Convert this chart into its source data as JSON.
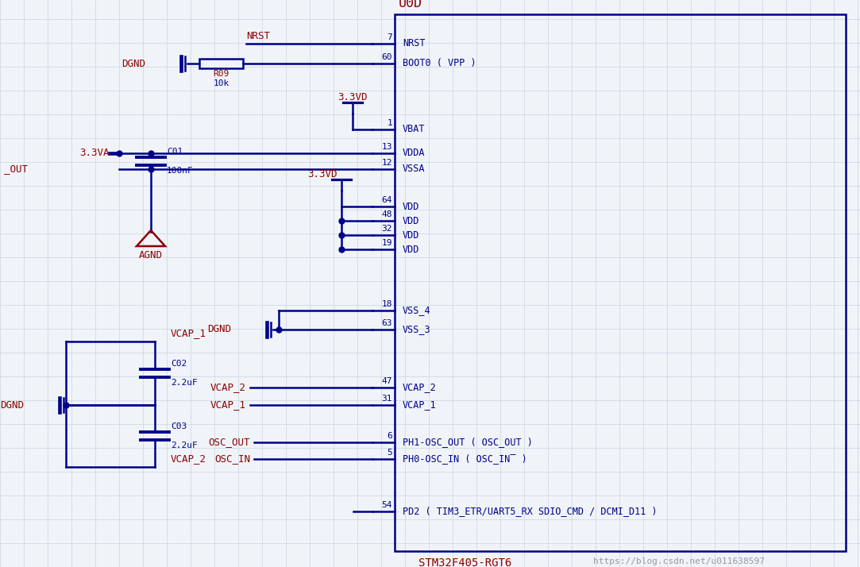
{
  "bg_color": "#f0f4f8",
  "grid_color": "#c8d4e0",
  "line_color": "#00008b",
  "red_color": "#8b0000",
  "chip_label": "U0D",
  "chip_bottom_label": "STM32F405-RGT6",
  "watermark": "https://blog.csdn.net/u011638597",
  "nrst_net": "NRST",
  "r09_label": "R09",
  "r09_value": "10k",
  "dgnd_label": "DGND",
  "vdd33_label": "3.3VD",
  "vba33_label": "3.3VA",
  "c01_label": "C01",
  "c01_value": "100nF",
  "agnd_label": "AGND",
  "c02_label": "C02",
  "c02_value": "2.2uF",
  "c03_label": "C03",
  "c03_value": "2.2uF",
  "vcap1_label": "VCAP_1",
  "vcap2_label": "VCAP_2",
  "osc_out_label": "OSC_OUT",
  "osc_in_label": "OSC_IN",
  "out_label": "_OUT"
}
